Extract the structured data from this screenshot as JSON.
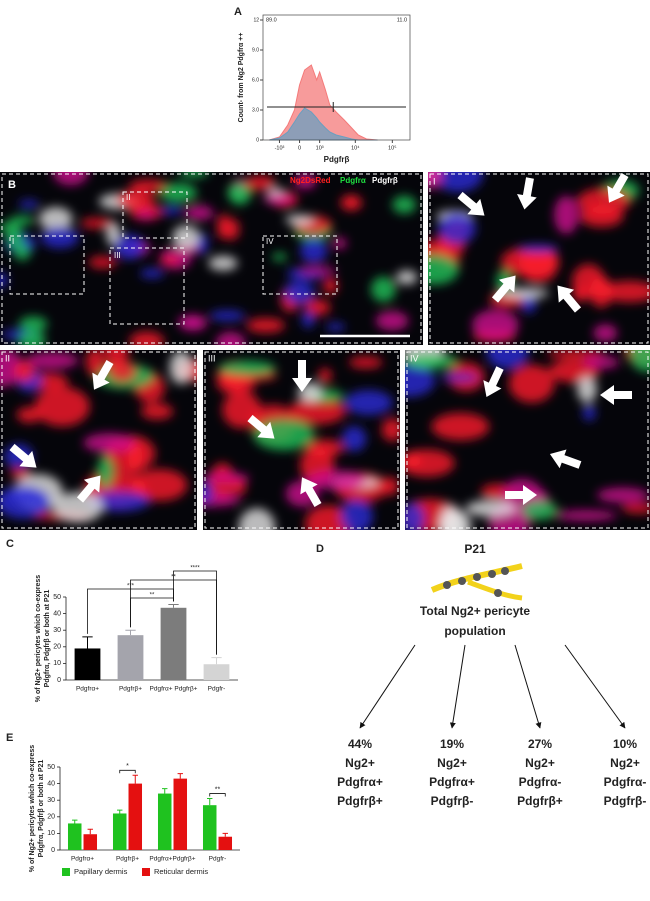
{
  "chart_data": [
    {
      "type": "area",
      "panel": "A",
      "y_label": "Count- from Ng2 Pdgfrα ++",
      "x_label": "Pdgfrβ",
      "x": [
        -2000,
        -1000,
        -500,
        -200,
        0,
        200,
        500,
        800,
        1000,
        1500,
        2000,
        3000,
        5000,
        8000,
        12000,
        20000,
        40000
      ],
      "series": [
        {
          "color": "#f47a7a",
          "values": [
            0,
            0.3,
            1.5,
            3,
            5.5,
            7,
            7.5,
            6,
            6.8,
            5,
            3.5,
            2.8,
            2,
            1.2,
            0.5,
            0.1,
            0
          ]
        },
        {
          "color": "#6a9fc0",
          "values": [
            0,
            0.2,
            0.8,
            1.8,
            2.6,
            3.2,
            2.8,
            2.2,
            1.8,
            1.2,
            0.8,
            0.5,
            0.3,
            0.1,
            0,
            0,
            0
          ]
        }
      ],
      "xscale": "arcsinh",
      "xlim": [
        -3000,
        300000
      ],
      "xticks": [
        {
          "value": -1000,
          "label": "-10³"
        },
        0,
        {
          "value": 1000,
          "label": "10³"
        },
        {
          "value": 10000,
          "label": "10⁴"
        },
        {
          "value": 100000,
          "label": "10⁵"
        }
      ],
      "ylim": [
        0,
        12.5
      ],
      "yticks": [
        0,
        {
          "value": 3,
          "label": "3.0"
        },
        {
          "value": 6,
          "label": "6.0"
        },
        {
          "value": 9,
          "label": "9.0"
        },
        12
      ],
      "gate": {
        "y": 3.3,
        "split": 2500
      },
      "annotations": [
        {
          "value": 89,
          "label": "89.0"
        },
        {
          "value": 11,
          "label": "11.0"
        }
      ]
    },
    {
      "type": "bar",
      "panel": "C",
      "y_label": [
        "% of Ng2+ pericytes which co-express",
        "Pdgfrα, Pdgfrβ or both at P21"
      ],
      "categories": [
        "Pdgfrα+",
        "Pdgfrβ+",
        "Pdgfrα+ Pdgfrβ+",
        "Pdgfr-"
      ],
      "values": [
        19,
        27,
        43.5,
        9.5
      ],
      "errors": [
        7,
        3,
        2,
        4
      ],
      "colors": [
        "#000000",
        "#a4a4ac",
        "#7c7c7c",
        "#d4d4d4"
      ],
      "ylim": [
        0,
        50
      ],
      "yticks": [
        0,
        10,
        20,
        30,
        40,
        50
      ],
      "brackets": [
        {
          "from": 2,
          "to": 3,
          "label": "****"
        },
        {
          "from": 1,
          "to": 3,
          "label": "**"
        },
        {
          "from": 0,
          "to": 2,
          "label": "***"
        },
        {
          "from": 1,
          "to": 2,
          "label": "**"
        }
      ]
    },
    {
      "type": "grouped-bar",
      "panel": "E",
      "y_label": [
        "% of Ng2+ pericytes which co-express",
        "Pdgfrα, Pdgfrβ or both at P21"
      ],
      "categories": [
        "Pdgfrα+",
        "Pdgfrβ+",
        "Pdgfrα+Pdgfrβ+",
        "Pdgfr-"
      ],
      "series": [
        {
          "name": "Papillary dermis",
          "color": "#1fc21f",
          "values": [
            16,
            22,
            34,
            27
          ],
          "errors": [
            2,
            2,
            3,
            4
          ]
        },
        {
          "name": "Reticular dermis",
          "color": "#e41010",
          "values": [
            9.5,
            40,
            43,
            8
          ],
          "errors": [
            3,
            5,
            3,
            2
          ]
        }
      ],
      "ylim": [
        0,
        50
      ],
      "yticks": [
        0,
        10,
        20,
        30,
        40,
        50
      ],
      "brackets": [
        {
          "category": 1,
          "label": "*"
        },
        {
          "category": 3,
          "label": "**"
        }
      ]
    }
  ],
  "microscopy": {
    "panel": "B",
    "channels": [
      "Ng2DsRed",
      "Pdgfrα",
      "Pdgfrβ"
    ],
    "insets": [
      "I",
      "II",
      "III",
      "IV"
    ]
  },
  "diagram": {
    "panel": "D",
    "title": "P21",
    "root": [
      "Total Ng2+ pericyte",
      "population"
    ],
    "nodes": [
      [
        "44%",
        "Ng2+",
        "Pdgfrα+",
        "Pdgfrβ+"
      ],
      [
        "19%",
        "Ng2+",
        "Pdgfrα+",
        "Pdgfrβ-"
      ],
      [
        "27%",
        "Ng2+",
        "Pdgfrα-",
        "Pdgfrβ+"
      ],
      [
        "10%",
        "Ng2+",
        "Pdgfrα-",
        "Pdgfrβ-"
      ]
    ]
  }
}
